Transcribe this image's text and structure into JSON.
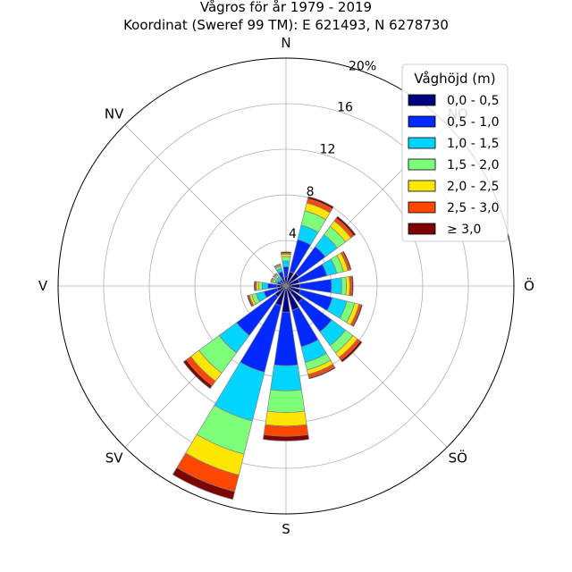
{
  "chart_data": {
    "type": "wind-rose",
    "title": "Vågros för år 1979 - 2019",
    "subtitle": "Koordinat (Sweref 99 TM): E 621493, N 6278730",
    "directions": [
      {
        "label": "N",
        "angle": 0
      },
      {
        "label": "NO",
        "angle": 45
      },
      {
        "label": "Ö",
        "angle": 90
      },
      {
        "label": "SÖ",
        "angle": 135
      },
      {
        "label": "S",
        "angle": 180
      },
      {
        "label": "SV",
        "angle": 225
      },
      {
        "label": "V",
        "angle": 270
      },
      {
        "label": "NV",
        "angle": 315
      }
    ],
    "radial_ticks": [
      4,
      8,
      12,
      16
    ],
    "radial_max_label": "20%",
    "rmax": 20,
    "legend": {
      "title": "Våghöjd (m)",
      "placement": "top-right",
      "bins": [
        {
          "label": "0,0 - 0,5",
          "color": "#00007f"
        },
        {
          "label": "0,5 - 1,0",
          "color": "#0029ff"
        },
        {
          "label": "1,0 - 1,5",
          "color": "#00d4ff"
        },
        {
          "label": "1,5 - 2,0",
          "color": "#7dff7a"
        },
        {
          "label": "2,0 - 2,5",
          "color": "#ffe600"
        },
        {
          "label": "2,5 - 3,0",
          "color": "#ff4700"
        },
        {
          "label": "≥ 3,0",
          "color": "#7f0000"
        }
      ]
    },
    "sector_width_deg": 17,
    "sectors": [
      {
        "dir": 0,
        "cum": [
          0.8,
          1.7,
          2.2,
          2.6,
          2.8,
          2.9,
          3.0
        ]
      },
      {
        "dir": 22.5,
        "cum": [
          1.3,
          4.2,
          5.5,
          6.8,
          7.5,
          7.9,
          8.1
        ]
      },
      {
        "dir": 45,
        "cum": [
          1.4,
          4.3,
          5.6,
          6.5,
          7.1,
          7.4,
          7.6
        ]
      },
      {
        "dir": 67.5,
        "cum": [
          1.2,
          3.7,
          4.6,
          5.2,
          5.6,
          5.8,
          5.9
        ]
      },
      {
        "dir": 90,
        "cum": [
          1.2,
          4.0,
          4.9,
          5.3,
          5.6,
          5.8,
          5.9
        ]
      },
      {
        "dir": 112.5,
        "cum": [
          1.3,
          4.2,
          5.5,
          6.2,
          6.6,
          6.8,
          6.9
        ]
      },
      {
        "dir": 135,
        "cum": [
          1.8,
          5.0,
          6.5,
          7.3,
          7.8,
          8.1,
          8.3
        ]
      },
      {
        "dir": 157.5,
        "cum": [
          2.2,
          5.5,
          6.9,
          7.6,
          8.0,
          8.3,
          8.4
        ]
      },
      {
        "dir": 180,
        "cum": [
          2.3,
          7.0,
          9.2,
          11.1,
          12.3,
          13.2,
          13.6
        ]
      },
      {
        "dir": 202.5,
        "cum": [
          1.8,
          7.8,
          12.2,
          15.2,
          17.1,
          18.6,
          19.3
        ]
      },
      {
        "dir": 225,
        "cum": [
          1.2,
          5.4,
          7.3,
          9.5,
          10.4,
          10.9,
          11.2
        ]
      },
      {
        "dir": 247.5,
        "cum": [
          0.8,
          2.0,
          2.7,
          3.1,
          3.3,
          3.4,
          3.5
        ]
      },
      {
        "dir": 270,
        "cum": [
          0.8,
          1.6,
          2.1,
          2.4,
          2.6,
          2.7,
          2.8
        ]
      },
      {
        "dir": 292.5,
        "cum": [
          0.4,
          0.8,
          1.0,
          1.2,
          1.3,
          1.35,
          1.4
        ]
      },
      {
        "dir": 315,
        "cum": [
          0.3,
          0.7,
          1.0,
          1.2,
          1.3,
          1.35,
          1.4
        ]
      },
      {
        "dir": 337.5,
        "cum": [
          0.6,
          1.3,
          1.6,
          1.8,
          1.9,
          1.95,
          2.0
        ]
      }
    ]
  }
}
